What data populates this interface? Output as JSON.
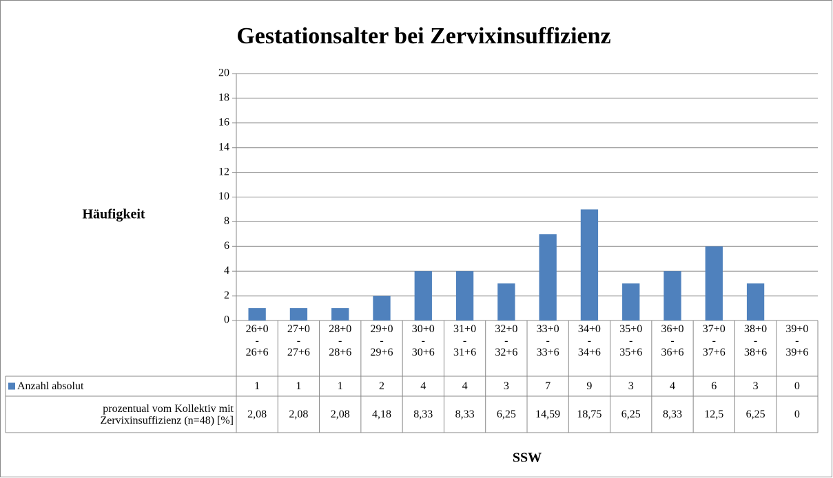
{
  "chart_data": {
    "type": "bar",
    "title": "Gestationsalter bei Zervixinsuffizienz",
    "y_label": "Häufigkeit",
    "x_label": "SSW",
    "categories": [
      "26+0\n-\n26+6",
      "27+0\n-\n27+6",
      "28+0\n-\n28+6",
      "29+0\n-\n29+6",
      "30+0\n-\n30+6",
      "31+0\n-\n31+6",
      "32+0\n-\n32+6",
      "33+0\n-\n33+6",
      "34+0\n-\n34+6",
      "35+0\n-\n35+6",
      "36+0\n-\n36+6",
      "37+0\n-\n37+6",
      "38+0\n-\n38+6",
      "39+0\n-\n39+6"
    ],
    "series": [
      {
        "name": "Anzahl absolut",
        "color": "#4f81bd",
        "values": [
          1,
          1,
          1,
          2,
          4,
          4,
          3,
          7,
          9,
          3,
          4,
          6,
          3,
          0
        ]
      },
      {
        "name": "prozentual vom Kollektiv mit Zervixinsuffizienz (n=48) [%]",
        "values": [
          2.08,
          2.08,
          2.08,
          4.18,
          8.33,
          8.33,
          6.25,
          14.59,
          18.75,
          6.25,
          8.33,
          12.5,
          6.25,
          0
        ],
        "value_labels": [
          "2,08",
          "2,08",
          "2,08",
          "4,18",
          "8,33",
          "8,33",
          "6,25",
          "14,59",
          "18,75",
          "6,25",
          "8,33",
          "12,5",
          "6,25",
          "0"
        ]
      }
    ],
    "ylim": [
      0,
      20
    ],
    "yticks": [
      0,
      2,
      4,
      6,
      8,
      10,
      12,
      14,
      16,
      18,
      20
    ],
    "grid": true
  }
}
